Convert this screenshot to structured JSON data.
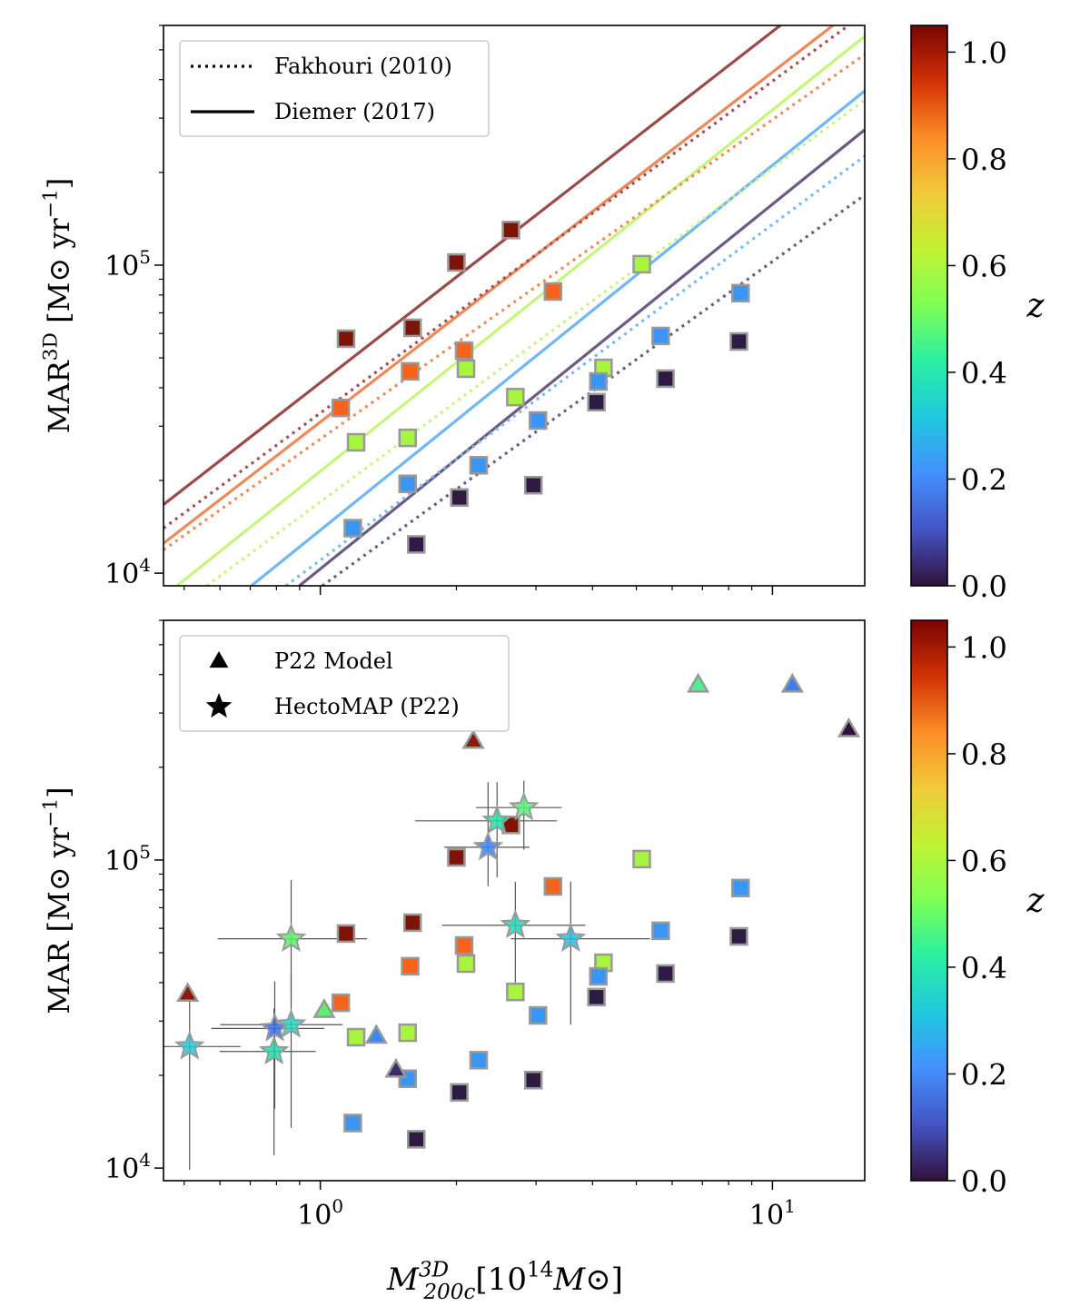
{
  "chart_data": [
    {
      "type": "scatter",
      "log_x": true,
      "log_y": true,
      "xlim": [
        0.45,
        16
      ],
      "ylim": [
        9100,
        600000
      ],
      "xticks": [
        1,
        10
      ],
      "xminor_ticks": [
        0.5,
        0.6,
        0.7,
        0.8,
        0.9,
        2,
        3,
        4,
        5,
        6,
        7,
        8,
        9
      ],
      "yticks": [
        {
          "value": 10000,
          "label": "10",
          "exponent": "4"
        },
        {
          "value": 100000,
          "label": "10",
          "exponent": "5"
        }
      ],
      "yminor_ticks": [
        20000,
        30000,
        40000,
        50000,
        60000,
        70000,
        80000,
        90000,
        200000,
        300000,
        400000,
        500000,
        600000
      ],
      "ylabel": [
        {
          "text": "MAR"
        },
        {
          "text": "3D",
          "shift": "sup"
        },
        {
          "text": " [M⊙ yr"
        },
        {
          "text": "−1",
          "shift": "sup"
        },
        {
          "text": "]"
        }
      ],
      "legend_position": "upper left",
      "legend": [
        {
          "label": "Fakhouri (2010)",
          "marker": "dotted"
        },
        {
          "label": "Diemer (2017)",
          "marker": "solid"
        }
      ],
      "lines": [
        {
          "style": "solid",
          "color": "#9b4a4a",
          "x": [
            0.45,
            10.42
          ],
          "values": [
            16700,
            601000
          ]
        },
        {
          "style": "solid",
          "color": "#ec8a5a",
          "x": [
            0.45,
            13.63
          ],
          "values": [
            12500,
            601000
          ]
        },
        {
          "style": "solid",
          "color": "#c6f57a",
          "x": [
            0.482,
            16
          ],
          "values": [
            9100,
            553000
          ]
        },
        {
          "style": "solid",
          "color": "#6fb8f5",
          "x": [
            0.704,
            16
          ],
          "values": [
            9100,
            368000
          ]
        },
        {
          "style": "solid",
          "color": "#6e5a82",
          "x": [
            0.899,
            16
          ],
          "values": [
            9100,
            275000
          ]
        },
        {
          "style": "dotted",
          "color": "#a0504f",
          "x": [
            0.45,
            14.75
          ],
          "values": [
            14000,
            601000
          ]
        },
        {
          "style": "dotted",
          "color": "#ee8a5a",
          "x": [
            0.45,
            16
          ],
          "values": [
            11900,
            483000
          ]
        },
        {
          "style": "dotted",
          "color": "#c6f57a",
          "x": [
            0.561,
            16
          ],
          "values": [
            9100,
            344000
          ]
        },
        {
          "style": "dotted",
          "color": "#78b9f2",
          "x": [
            0.839,
            16
          ],
          "values": [
            9100,
            226000
          ]
        },
        {
          "style": "dotted",
          "color": "#6d5b80",
          "x": [
            1.01,
            16
          ],
          "values": [
            9100,
            169000
          ]
        }
      ],
      "series": [
        {
          "marker": "square",
          "color": "#7f1307",
          "x": [
            1.14,
            1.6,
            2.0,
            2.64
          ],
          "values": [
            57700,
            62600,
            102000,
            130000
          ]
        },
        {
          "marker": "square",
          "color": "#f6621c",
          "x": [
            1.11,
            1.58,
            2.08,
            3.27
          ],
          "values": [
            34400,
            45200,
            52800,
            82100
          ]
        },
        {
          "marker": "square",
          "color": "#a8f540",
          "x": [
            1.2,
            1.56,
            2.1,
            2.7,
            5.14,
            4.23
          ],
          "values": [
            26600,
            27500,
            46100,
            37300,
            100700,
            46400
          ]
        },
        {
          "marker": "square",
          "color": "#3a96f5",
          "x": [
            1.18,
            1.56,
            2.24,
            3.03,
            4.12,
            5.66,
            8.5
          ],
          "values": [
            14000,
            19500,
            22400,
            31300,
            41900,
            58900,
            81100
          ]
        },
        {
          "marker": "square",
          "color": "#2e1a42",
          "x": [
            1.63,
            2.03,
            2.96,
            4.08,
            5.8,
            8.43
          ],
          "values": [
            12400,
            17600,
            19300,
            35900,
            42800,
            56500
          ]
        }
      ],
      "colorbar": {
        "label": "z",
        "lim": [
          0,
          1.05
        ],
        "ticks": [
          {
            "value": 0,
            "label": "0.0"
          },
          {
            "value": 0.2,
            "label": "0.2"
          },
          {
            "value": 0.4,
            "label": "0.4"
          },
          {
            "value": 0.6,
            "label": "0.6"
          },
          {
            "value": 0.8,
            "label": "0.8"
          },
          {
            "value": 1.0,
            "label": "1.0"
          }
        ],
        "colors": [
          "#30123b",
          "#4454c4",
          "#4490fe",
          "#1fc8de",
          "#29efa2",
          "#7dff56",
          "#c1f334",
          "#f1ca3a",
          "#fd8d27",
          "#d23105",
          "#7a0403"
        ]
      }
    },
    {
      "type": "scatter",
      "log_x": true,
      "log_y": true,
      "xlim": [
        0.45,
        16
      ],
      "ylim": [
        9100,
        600000
      ],
      "xticks": [
        {
          "value": 1,
          "label": "10",
          "exponent": "0"
        },
        {
          "value": 10,
          "label": "10",
          "exponent": "1"
        }
      ],
      "xminor_ticks": [
        0.5,
        0.6,
        0.7,
        0.8,
        0.9,
        2,
        3,
        4,
        5,
        6,
        7,
        8,
        9
      ],
      "yticks": [
        {
          "value": 10000,
          "label": "10",
          "exponent": "4"
        },
        {
          "value": 100000,
          "label": "10",
          "exponent": "5"
        }
      ],
      "yminor_ticks": [
        20000,
        30000,
        40000,
        50000,
        60000,
        70000,
        80000,
        90000,
        200000,
        300000,
        400000,
        500000,
        600000
      ],
      "ylabel": [
        {
          "text": "MAR [M⊙ yr"
        },
        {
          "text": "−1",
          "shift": "sup"
        },
        {
          "text": "]"
        }
      ],
      "xlabel": [
        {
          "text": "M",
          "style": "italic"
        },
        {
          "text": "3D",
          "shift": "sup",
          "style": "italic"
        },
        {
          "text": "200c",
          "shift": "sub",
          "style": "italic"
        },
        {
          "text": "[10"
        },
        {
          "text": "14",
          "shift": "sup"
        },
        {
          "text": "M",
          "style": "italic"
        },
        {
          "text": "⊙]"
        }
      ],
      "legend_position": "upper left",
      "legend": [
        {
          "label": "P22 Model",
          "marker": "triangle"
        },
        {
          "label": "HectoMAP (P22)",
          "marker": "star"
        }
      ],
      "series": [
        {
          "marker": "square",
          "color": "#7f1307",
          "x": [
            1.14,
            1.6,
            2.0,
            2.64
          ],
          "values": [
            57700,
            62600,
            102000,
            130000
          ]
        },
        {
          "marker": "square",
          "color": "#f6621c",
          "x": [
            1.11,
            1.58,
            2.08,
            3.27
          ],
          "values": [
            34400,
            45200,
            52800,
            82100
          ]
        },
        {
          "marker": "square",
          "color": "#a8f540",
          "x": [
            1.2,
            1.56,
            2.1,
            2.7,
            5.14,
            4.23
          ],
          "values": [
            26600,
            27500,
            46100,
            37300,
            100700,
            46400
          ]
        },
        {
          "marker": "square",
          "color": "#3a96f5",
          "x": [
            1.18,
            1.56,
            2.24,
            3.03,
            4.12,
            5.66,
            8.5
          ],
          "values": [
            14000,
            19500,
            22400,
            31300,
            41900,
            58900,
            81100
          ]
        },
        {
          "marker": "square",
          "color": "#2e1a42",
          "x": [
            1.63,
            2.03,
            2.96,
            4.08,
            5.8,
            8.43
          ],
          "values": [
            12400,
            17600,
            19300,
            35900,
            42800,
            56500
          ]
        },
        {
          "name": "P22 Model",
          "marker": "triangle",
          "colors": [
            "#8b1a0e",
            "#8b1a0e",
            "#4cf08e",
            "#3d7ff0",
            "#30123b",
            "#5af06c",
            "#3b87f4",
            "#3b2a6d"
          ],
          "x": [
            0.509,
            2.18,
            6.85,
            11.07,
            14.75,
            1.02,
            1.33,
            1.47
          ],
          "values": [
            36700,
            243000,
            370000,
            370000,
            265000,
            32500,
            26800,
            20800
          ]
        },
        {
          "name": "HectoMAP (P22)",
          "marker": "star",
          "colors": [
            "#25c6d6",
            "#1fd9b0",
            "#3b6ee8",
            "#22d3bf",
            "#5cf06a",
            "#3b82f4",
            "#1be2a5",
            "#52f176",
            "#20d8b5",
            "#28bce0"
          ],
          "x": [
            0.514,
            0.79,
            0.793,
            0.862,
            0.862,
            2.35,
            2.46,
            2.82,
            2.7,
            3.58
          ],
          "values": [
            24800,
            23900,
            28400,
            29200,
            55500,
            110000,
            134000,
            148000,
            61400,
            55500
          ],
          "x_low": [
            0.45,
            0.599,
            0.574,
            0.601,
            0.593,
            1.88,
            1.62,
            2.21,
            1.86,
            2.64
          ],
          "x_high": [
            0.666,
            0.977,
            1.02,
            1.12,
            1.27,
            2.9,
            3.34,
            3.42,
            3.86,
            5.36
          ],
          "y_low": [
            9860,
            11000,
            15600,
            13500,
            35200,
            82200,
            87900,
            108000,
            35200,
            29200
          ],
          "y_high": [
            35200,
            33000,
            40400,
            43100,
            86100,
            179000,
            179000,
            181000,
            85000,
            85000
          ]
        }
      ],
      "colorbar": {
        "label": "z",
        "lim": [
          0,
          1.05
        ],
        "ticks": [
          {
            "value": 0,
            "label": "0.0"
          },
          {
            "value": 0.2,
            "label": "0.2"
          },
          {
            "value": 0.4,
            "label": "0.4"
          },
          {
            "value": 0.6,
            "label": "0.6"
          },
          {
            "value": 0.8,
            "label": "0.8"
          },
          {
            "value": 1.0,
            "label": "1.0"
          }
        ],
        "colors": [
          "#30123b",
          "#4454c4",
          "#4490fe",
          "#1fc8de",
          "#29efa2",
          "#7dff56",
          "#c1f334",
          "#f1ca3a",
          "#fd8d27",
          "#d23105",
          "#7a0403"
        ]
      }
    }
  ]
}
